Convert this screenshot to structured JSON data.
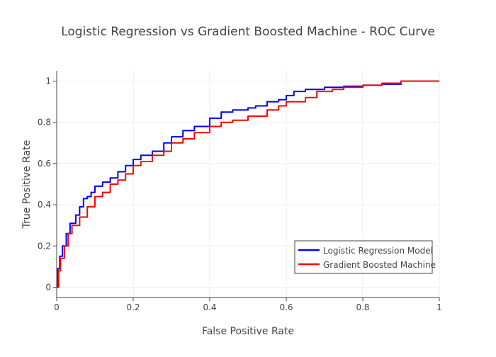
{
  "chart_data": {
    "type": "line",
    "title": "Logistic Regression vs Gradient Boosted Machine - ROC Curve",
    "xlabel": "False Positive Rate",
    "ylabel": "True Positive Rate",
    "xlim": [
      0,
      1
    ],
    "ylim": [
      -0.05,
      1.05
    ],
    "x_ticks": [
      0,
      0.2,
      0.4,
      0.6,
      0.8,
      1
    ],
    "y_ticks": [
      0,
      0.2,
      0.4,
      0.6,
      0.8,
      1
    ],
    "x_tick_labels": [
      "0",
      "0.2",
      "0.4",
      "0.6",
      "0.8",
      "1"
    ],
    "y_tick_labels": [
      "0",
      "0.2",
      "0.4",
      "0.6",
      "0.8",
      "1"
    ],
    "grid": true,
    "legend_position": "bottom-right",
    "series": [
      {
        "name": "Logistic Regression Model",
        "color": "#0000ff",
        "x": [
          0,
          0.003,
          0.008,
          0.015,
          0.025,
          0.035,
          0.05,
          0.06,
          0.07,
          0.08,
          0.09,
          0.1,
          0.12,
          0.14,
          0.16,
          0.18,
          0.2,
          0.22,
          0.25,
          0.28,
          0.3,
          0.33,
          0.36,
          0.4,
          0.43,
          0.46,
          0.5,
          0.52,
          0.55,
          0.58,
          0.6,
          0.62,
          0.65,
          0.7,
          0.75,
          0.8,
          0.85,
          0.9,
          1
        ],
        "y": [
          0,
          0.09,
          0.15,
          0.2,
          0.26,
          0.31,
          0.35,
          0.39,
          0.43,
          0.44,
          0.46,
          0.49,
          0.51,
          0.53,
          0.56,
          0.59,
          0.62,
          0.64,
          0.66,
          0.7,
          0.73,
          0.76,
          0.78,
          0.82,
          0.85,
          0.86,
          0.87,
          0.88,
          0.9,
          0.91,
          0.93,
          0.95,
          0.96,
          0.97,
          0.975,
          0.98,
          0.985,
          1,
          1
        ]
      },
      {
        "name": "Gradient Boosted Machine",
        "color": "#ff0000",
        "x": [
          0,
          0.005,
          0.01,
          0.02,
          0.03,
          0.04,
          0.06,
          0.08,
          0.1,
          0.12,
          0.14,
          0.16,
          0.18,
          0.2,
          0.22,
          0.25,
          0.28,
          0.3,
          0.33,
          0.36,
          0.4,
          0.43,
          0.46,
          0.5,
          0.55,
          0.58,
          0.6,
          0.65,
          0.68,
          0.72,
          0.75,
          0.8,
          0.85,
          0.9,
          1
        ],
        "y": [
          0,
          0.08,
          0.14,
          0.2,
          0.26,
          0.3,
          0.34,
          0.39,
          0.44,
          0.46,
          0.5,
          0.52,
          0.55,
          0.59,
          0.61,
          0.64,
          0.66,
          0.7,
          0.72,
          0.75,
          0.78,
          0.8,
          0.81,
          0.83,
          0.86,
          0.88,
          0.9,
          0.92,
          0.95,
          0.96,
          0.97,
          0.98,
          0.99,
          1,
          1
        ]
      }
    ]
  }
}
